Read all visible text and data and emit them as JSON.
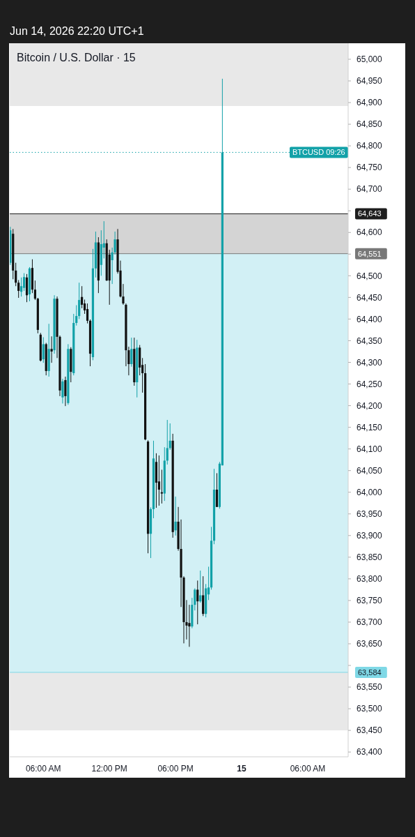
{
  "chart_data": {
    "type": "candlestick",
    "title": "Bitcoin / U.S. Dollar · 15",
    "subtitle": "Jun 14, 2026 22:20 UTC+1",
    "x": [
      "2026-06-14T03:00",
      "2026-06-14T03:15",
      "2026-06-14T03:30",
      "2026-06-14T03:45",
      "2026-06-14T04:00",
      "2026-06-14T04:15",
      "2026-06-14T04:30",
      "2026-06-14T04:45",
      "2026-06-14T05:00",
      "2026-06-14T05:15",
      "2026-06-14T05:30",
      "2026-06-14T05:45",
      "2026-06-14T06:00",
      "2026-06-14T06:15",
      "2026-06-14T06:30",
      "2026-06-14T06:45",
      "2026-06-14T07:00",
      "2026-06-14T07:15",
      "2026-06-14T07:30",
      "2026-06-14T07:45",
      "2026-06-14T08:00",
      "2026-06-14T08:15",
      "2026-06-14T08:30",
      "2026-06-14T08:45",
      "2026-06-14T09:00",
      "2026-06-14T09:15",
      "2026-06-14T09:30",
      "2026-06-14T09:45",
      "2026-06-14T10:00",
      "2026-06-14T10:15",
      "2026-06-14T10:30",
      "2026-06-14T10:45",
      "2026-06-14T11:00",
      "2026-06-14T11:15",
      "2026-06-14T11:30",
      "2026-06-14T11:45",
      "2026-06-14T12:00",
      "2026-06-14T12:15",
      "2026-06-14T12:30",
      "2026-06-14T12:45",
      "2026-06-14T13:00",
      "2026-06-14T13:15",
      "2026-06-14T13:30",
      "2026-06-14T13:45",
      "2026-06-14T14:00",
      "2026-06-14T14:15",
      "2026-06-14T14:30",
      "2026-06-14T14:45",
      "2026-06-14T15:00",
      "2026-06-14T15:15",
      "2026-06-14T15:30",
      "2026-06-14T15:45",
      "2026-06-14T16:00",
      "2026-06-14T16:15",
      "2026-06-14T16:30",
      "2026-06-14T16:45",
      "2026-06-14T17:00",
      "2026-06-14T17:15",
      "2026-06-14T17:30",
      "2026-06-14T17:45",
      "2026-06-14T18:00",
      "2026-06-14T18:15",
      "2026-06-14T18:30",
      "2026-06-14T18:45",
      "2026-06-14T19:00",
      "2026-06-14T19:15",
      "2026-06-14T19:30",
      "2026-06-14T19:45",
      "2026-06-14T20:00",
      "2026-06-14T20:15",
      "2026-06-14T20:30",
      "2026-06-14T20:45",
      "2026-06-14T21:00",
      "2026-06-14T21:15",
      "2026-06-14T21:30",
      "2026-06-14T21:45",
      "2026-06-14T22:00",
      "2026-06-14T22:15"
    ],
    "ohlc": [
      [
        64530,
        64613,
        64525,
        64605
      ],
      [
        64597,
        64608,
        64492,
        64512
      ],
      [
        64512,
        64530,
        64476,
        64484
      ],
      [
        64484,
        64490,
        64449,
        64465
      ],
      [
        64463,
        64496,
        64452,
        64476
      ],
      [
        64472,
        64506,
        64465,
        64497
      ],
      [
        64496,
        64504,
        64439,
        64455
      ],
      [
        64457,
        64520,
        64441,
        64517
      ],
      [
        64518,
        64538,
        64460,
        64468
      ],
      [
        64468,
        64489,
        64444,
        64447
      ],
      [
        64447,
        64449,
        64367,
        64375
      ],
      [
        64364,
        64368,
        64302,
        64304
      ],
      [
        64307,
        64358,
        64299,
        64342
      ],
      [
        64342,
        64345,
        64270,
        64280
      ],
      [
        64280,
        64389,
        64267,
        64331
      ],
      [
        64331,
        64360,
        64299,
        64325
      ],
      [
        64328,
        64455,
        64320,
        64447
      ],
      [
        64447,
        64452,
        64310,
        64359
      ],
      [
        64359,
        64362,
        64222,
        64235
      ],
      [
        64219,
        64262,
        64205,
        64256
      ],
      [
        64259,
        64267,
        64199,
        64222
      ],
      [
        64206,
        64342,
        64202,
        64331
      ],
      [
        64331,
        64335,
        64254,
        64278
      ],
      [
        64275,
        64412,
        64270,
        64391
      ],
      [
        64391,
        64432,
        64385,
        64407
      ],
      [
        64407,
        64484,
        64400,
        64444
      ],
      [
        64451,
        64476,
        64425,
        64433
      ],
      [
        64436,
        64445,
        64412,
        64420
      ],
      [
        64423,
        64436,
        64390,
        64396
      ],
      [
        64396,
        64399,
        64291,
        64320
      ],
      [
        64312,
        64562,
        64305,
        64517
      ],
      [
        64517,
        64602,
        64496,
        64577
      ],
      [
        64577,
        64589,
        64460,
        64489
      ],
      [
        64525,
        64605,
        64500,
        64573
      ],
      [
        64565,
        64626,
        64540,
        64575
      ],
      [
        64575,
        64584,
        64488,
        64489
      ],
      [
        64549,
        64560,
        64433,
        64489
      ],
      [
        64536,
        64565,
        64481,
        64554
      ],
      [
        64554,
        64602,
        64549,
        64584
      ],
      [
        64584,
        64608,
        64505,
        64509
      ],
      [
        64512,
        64535,
        64450,
        64452
      ],
      [
        64452,
        64481,
        64433,
        64436
      ],
      [
        64433,
        64436,
        64291,
        64328
      ],
      [
        64328,
        64336,
        64270,
        64296
      ],
      [
        64296,
        64357,
        64290,
        64331
      ],
      [
        64331,
        64357,
        64246,
        64254
      ],
      [
        64254,
        64352,
        64219,
        64334
      ],
      [
        64334,
        64340,
        64270,
        64288
      ],
      [
        64294,
        64310,
        64230,
        64275
      ],
      [
        64275,
        64296,
        64120,
        64122
      ],
      [
        64117,
        64120,
        63859,
        63904
      ],
      [
        63904,
        63965,
        63848,
        63961
      ],
      [
        63961,
        64119,
        63940,
        64078
      ],
      [
        64070,
        64090,
        63964,
        64022
      ],
      [
        64025,
        64085,
        63969,
        64006
      ],
      [
        64000,
        64052,
        63974,
        63997
      ],
      [
        63997,
        64104,
        63980,
        64073
      ],
      [
        64073,
        64167,
        64064,
        64102
      ],
      [
        64102,
        64159,
        64098,
        64119
      ],
      [
        64119,
        64135,
        63895,
        63908
      ],
      [
        63912,
        63990,
        63900,
        63932
      ],
      [
        63932,
        63966,
        63865,
        63869
      ],
      [
        63869,
        63937,
        63735,
        63803
      ],
      [
        63803,
        63806,
        63651,
        63700
      ],
      [
        63700,
        63751,
        63660,
        63692
      ],
      [
        63698,
        63740,
        63643,
        63690
      ],
      [
        63690,
        63756,
        63686,
        63740
      ],
      [
        63740,
        63778,
        63727,
        63775
      ],
      [
        63775,
        63796,
        63695,
        63748
      ],
      [
        63748,
        63819,
        63745,
        63762
      ],
      [
        63762,
        63806,
        63714,
        63719
      ],
      [
        63719,
        63788,
        63711,
        63778
      ],
      [
        63764,
        63828,
        63751,
        63780
      ],
      [
        63780,
        63920,
        63775,
        63888
      ],
      [
        63888,
        64054,
        63880,
        64006
      ],
      [
        64006,
        64044,
        63966,
        63966
      ],
      [
        63966,
        64070,
        63962,
        64066
      ],
      [
        64062,
        64955,
        64062,
        64785
      ]
    ],
    "xlim": [
      "2026-06-14T02:57",
      "2026-06-15T09:40"
    ],
    "xticks": [
      {
        "value": "2026-06-14T06:00",
        "label": "06:00 AM"
      },
      {
        "value": "2026-06-14T12:00",
        "label": "12:00 PM"
      },
      {
        "value": "2026-06-14T18:00",
        "label": "06:00 PM"
      },
      {
        "value": "2026-06-15T00:00",
        "label": "15"
      },
      {
        "value": "2026-06-15T06:00",
        "label": "06:00 AM"
      }
    ],
    "ylim": [
      63389,
      65037
    ],
    "yticks": [
      {
        "value": 63400,
        "label": "63,400"
      },
      {
        "value": 63450,
        "label": "63,450"
      },
      {
        "value": 63500,
        "label": "63,500"
      },
      {
        "value": 63550,
        "label": "63,550"
      },
      {
        "value": 63600,
        "label": null
      },
      {
        "value": 63650,
        "label": "63,650"
      },
      {
        "value": 63700,
        "label": "63,700"
      },
      {
        "value": 63750,
        "label": "63,750"
      },
      {
        "value": 63800,
        "label": "63,800"
      },
      {
        "value": 63850,
        "label": "63,850"
      },
      {
        "value": 63900,
        "label": "63,900"
      },
      {
        "value": 63950,
        "label": "63,950"
      },
      {
        "value": 64000,
        "label": "64,000"
      },
      {
        "value": 64050,
        "label": "64,050"
      },
      {
        "value": 64100,
        "label": "64,100"
      },
      {
        "value": 64150,
        "label": "64,150"
      },
      {
        "value": 64200,
        "label": "64,200"
      },
      {
        "value": 64250,
        "label": "64,250"
      },
      {
        "value": 64300,
        "label": "64,300"
      },
      {
        "value": 64350,
        "label": "64,350"
      },
      {
        "value": 64400,
        "label": "64,400"
      },
      {
        "value": 64450,
        "label": "64,450"
      },
      {
        "value": 64500,
        "label": "64,500"
      },
      {
        "value": 64550,
        "label": null
      },
      {
        "value": 64600,
        "label": "64,600"
      },
      {
        "value": 64650,
        "label": null
      },
      {
        "value": 64700,
        "label": "64,700"
      },
      {
        "value": 64750,
        "label": "64,750"
      },
      {
        "value": 64800,
        "label": "64,800"
      },
      {
        "value": 64850,
        "label": "64,850"
      },
      {
        "value": 64900,
        "label": "64,900"
      },
      {
        "value": 64950,
        "label": "64,950"
      },
      {
        "value": 65000,
        "label": "65,000"
      }
    ],
    "bands": [
      {
        "axis": "y",
        "from": 63584,
        "to": 64551,
        "color": "#d2f0f5"
      },
      {
        "axis": "y",
        "from": 64551,
        "to": 64643,
        "color": "#d4d4d4"
      },
      {
        "axis": "y",
        "from": 64892,
        "to": 65037,
        "color": "#e8e8e8"
      },
      {
        "axis": "y",
        "from": 63450,
        "to": 63584,
        "color": "#e8e8e8"
      }
    ],
    "ref_lines": [
      {
        "axis": "y",
        "value": 64785,
        "color": "#12a1a8",
        "line_style": "dotted"
      },
      {
        "axis": "y",
        "value": 64643,
        "label": "64,643",
        "color": "#1e1e1e",
        "line_style": "solid"
      },
      {
        "axis": "y",
        "value": 64551,
        "label": "64,551",
        "color": "#787878",
        "line_style": "solid"
      },
      {
        "axis": "y",
        "value": 63584,
        "label": "63,584",
        "color": "#7fd8e6",
        "line_style": "solid"
      }
    ],
    "annotations": [
      {
        "text": "BTCUSD 09:26",
        "x": "2026-06-15T07:00",
        "y": 64785
      }
    ],
    "grid": false
  }
}
